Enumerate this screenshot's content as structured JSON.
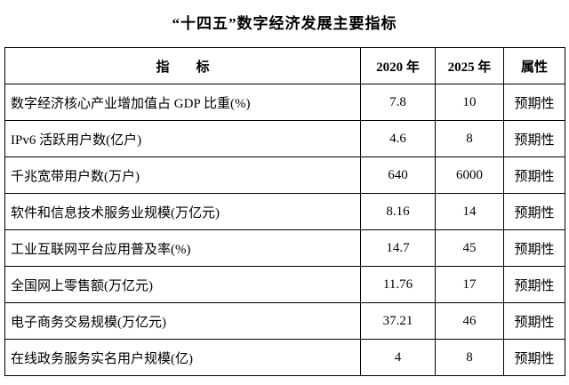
{
  "title": "“十四五”数字经济发展主要指标",
  "table": {
    "headers": {
      "indicator": "指　　标",
      "y2020": "2020 年",
      "y2025": "2025 年",
      "attribute": "属性"
    },
    "rows": [
      {
        "indicator": "数字经济核心产业增加值占 GDP 比重(%)",
        "y2020": "7.8",
        "y2025": "10",
        "attribute": "预期性"
      },
      {
        "indicator": "IPv6 活跃用户数(亿户)",
        "y2020": "4.6",
        "y2025": "8",
        "attribute": "预期性"
      },
      {
        "indicator": "千兆宽带用户数(万户)",
        "y2020": "640",
        "y2025": "6000",
        "attribute": "预期性"
      },
      {
        "indicator": "软件和信息技术服务业规模(万亿元)",
        "y2020": "8.16",
        "y2025": "14",
        "attribute": "预期性"
      },
      {
        "indicator": "工业互联网平台应用普及率(%)",
        "y2020": "14.7",
        "y2025": "45",
        "attribute": "预期性"
      },
      {
        "indicator": "全国网上零售额(万亿元)",
        "y2020": "11.76",
        "y2025": "17",
        "attribute": "预期性"
      },
      {
        "indicator": "电子商务交易规模(万亿元)",
        "y2020": "37.21",
        "y2025": "46",
        "attribute": "预期性"
      },
      {
        "indicator": "在线政务服务实名用户规模(亿)",
        "y2020": "4",
        "y2025": "8",
        "attribute": "预期性"
      }
    ]
  }
}
